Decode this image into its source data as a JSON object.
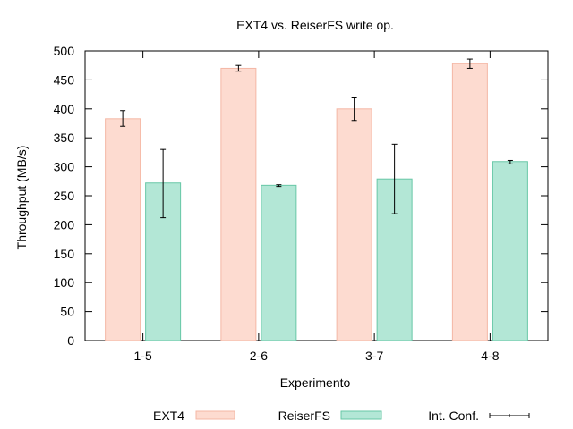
{
  "chart_data": {
    "type": "bar",
    "title": "EXT4 vs. ReiserFS write op.",
    "xlabel": "Experimento",
    "ylabel": "Throughput (MB/s)",
    "categories": [
      "1-5",
      "2-6",
      "3-7",
      "4-8"
    ],
    "ylim": [
      0,
      500
    ],
    "yticks": [
      0,
      50,
      100,
      150,
      200,
      250,
      300,
      350,
      400,
      450,
      500
    ],
    "grid": false,
    "legend_position": "bottom",
    "series": [
      {
        "name": "EXT4",
        "color": "#fddbd0",
        "stroke": "#f4b7a5",
        "values": [
          383,
          470,
          400,
          478
        ],
        "ci": [
          [
            370,
            397
          ],
          [
            465,
            475
          ],
          [
            380,
            419
          ],
          [
            470,
            486
          ]
        ]
      },
      {
        "name": "ReiserFS",
        "color": "#b3e7d6",
        "stroke": "#67c7a6",
        "values": [
          272,
          268,
          279,
          309
        ],
        "ci": [
          [
            212,
            330
          ],
          [
            266,
            269
          ],
          [
            219,
            339
          ],
          [
            305,
            311
          ]
        ]
      }
    ],
    "ci_label": "Int. Conf."
  }
}
